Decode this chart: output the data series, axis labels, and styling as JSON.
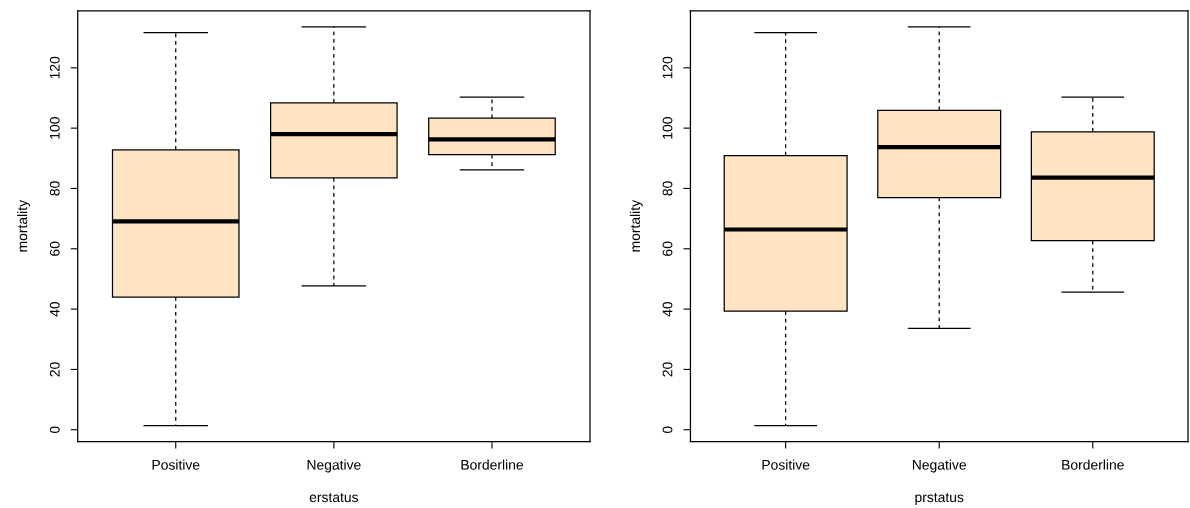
{
  "chart_data": [
    {
      "type": "box",
      "xlabel": "erstatus",
      "ylabel": "mortality",
      "categories": [
        "Positive",
        "Negative",
        "Borderline"
      ],
      "ylim": [
        -3.9,
        138.9
      ],
      "yticks": [
        0,
        20,
        40,
        60,
        80,
        100,
        120
      ],
      "series": [
        {
          "color": "#ffe4c4",
          "boxes": [
            {
              "low": 1.4,
              "q1": 44.0,
              "median": 69.1,
              "q3": 92.8,
              "high": 131.7
            },
            {
              "low": 47.7,
              "q1": 83.5,
              "median": 98.0,
              "q3": 108.4,
              "high": 133.6
            },
            {
              "low": 86.2,
              "q1": 91.2,
              "median": 96.3,
              "q3": 103.3,
              "high": 110.3
            }
          ]
        }
      ]
    },
    {
      "type": "box",
      "xlabel": "prstatus",
      "ylabel": "mortality",
      "categories": [
        "Positive",
        "Negative",
        "Borderline"
      ],
      "ylim": [
        -3.9,
        138.9
      ],
      "yticks": [
        0,
        20,
        40,
        60,
        80,
        100,
        120
      ],
      "series": [
        {
          "color": "#ffe4c4",
          "boxes": [
            {
              "low": 1.4,
              "q1": 39.3,
              "median": 66.4,
              "q3": 90.9,
              "high": 131.7
            },
            {
              "low": 33.6,
              "q1": 77.0,
              "median": 93.7,
              "q3": 105.9,
              "high": 133.6
            },
            {
              "low": 45.6,
              "q1": 62.7,
              "median": 83.6,
              "q3": 98.8,
              "high": 110.3
            }
          ]
        }
      ]
    }
  ]
}
